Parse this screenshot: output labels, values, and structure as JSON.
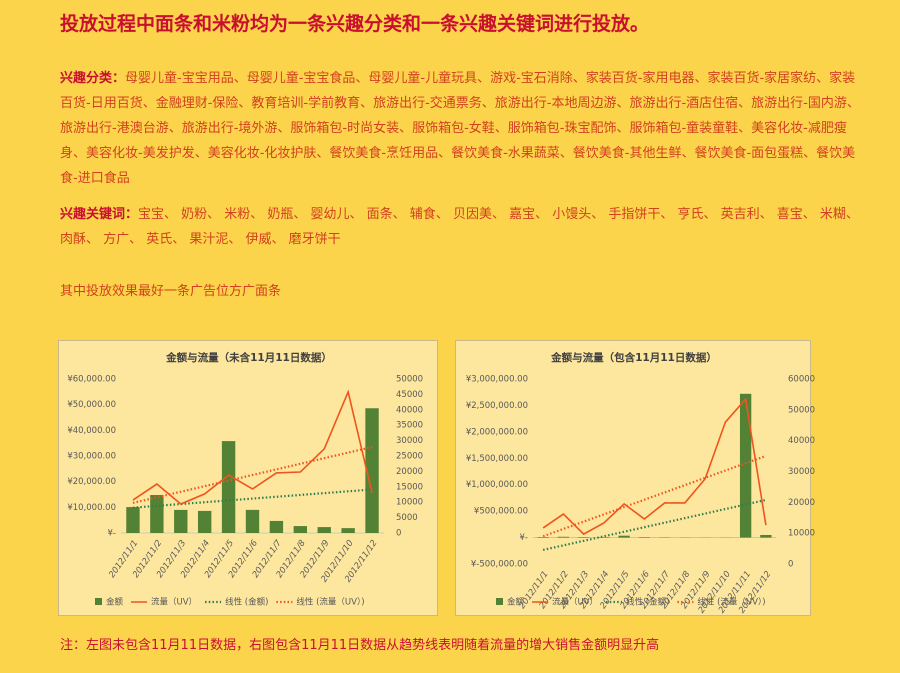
{
  "header": {
    "title": "投放过程中面条和米粉均为一条兴趣分类和一条兴趣关键词进行投放。"
  },
  "interest": {
    "label": "兴趣分类：",
    "text": "母婴儿童-宝宝用品、母婴儿童-宝宝食品、母婴儿童-儿童玩具、游戏-宝石消除、家装百货-家用电器、家装百货-家居家纺、家装百货-日用百货、金融理财-保险、教育培训-学前教育、旅游出行-交通票务、旅游出行-本地周边游、旅游出行-酒店住宿、旅游出行-国内游、旅游出行-港澳台游、旅游出行-境外游、服饰箱包-时尚女装、服饰箱包-女鞋、服饰箱包-珠宝配饰、服饰箱包-童装童鞋、美容化妆-减肥瘦身、美容化妆-美发护发、美容化妆-化妆护肤、餐饮美食-烹饪用品、餐饮美食-水果蔬菜、餐饮美食-其他生鲜、餐饮美食-面包蛋糕、餐饮美食-进口食品"
  },
  "keywords": {
    "label": "兴趣关键词：",
    "text": "宝宝、 奶粉、 米粉、 奶瓶、 婴幼儿、 面条、 辅食、 贝因美、 嘉宝、 小馒头、 手指饼干、 亨氏、 英吉利、 喜宝、 米糊、 肉酥、 方广、 英氏、 果汁泥、 伊威、 磨牙饼干"
  },
  "best": "其中投放效果最好一条广告位方广面条",
  "note": "注：左图未包含11月11日数据，右图包含11月11日数据从趋势线表明随着流量的增大销售金额明显升高",
  "chart_data": [
    {
      "type": "combo",
      "title": "金额与流量（未含11月11日数据）",
      "categories": [
        "2012/11/1",
        "2012/11/2",
        "2012/11/3",
        "2012/11/4",
        "2012/11/5",
        "2012/11/6",
        "2012/11/7",
        "2012/11/8",
        "2012/11/9",
        "2012/11/10",
        "2012/11/12"
      ],
      "series": [
        {
          "name": "金额",
          "type": "bar",
          "color": "#548235",
          "values": [
            10100,
            14800,
            9000,
            8600,
            35800,
            9000,
            4700,
            2700,
            2300,
            1900,
            48600
          ],
          "trend": {
            "name": "线性 (金额)",
            "color": "#2e7d4f"
          }
        },
        {
          "name": "流量（UV）",
          "type": "line",
          "axis": "y2",
          "color": "#f0541e",
          "values": [
            10700,
            15900,
            9400,
            12700,
            18800,
            14300,
            19500,
            19800,
            27300,
            45800,
            13000
          ],
          "trend": {
            "name": "线性 (流量（UV）)",
            "color": "#f0541e"
          }
        }
      ],
      "ylim": [
        0,
        60000
      ],
      "yticks": [
        {
          "value": 0,
          "label": "¥-"
        },
        {
          "value": 10000,
          "label": "¥10,000.00"
        },
        {
          "value": 20000,
          "label": "¥20,000.00"
        },
        {
          "value": 30000,
          "label": "¥30,000.00"
        },
        {
          "value": 40000,
          "label": "¥40,000.00"
        },
        {
          "value": 50000,
          "label": "¥50,000.00"
        },
        {
          "value": 60000,
          "label": "¥60,000.00"
        }
      ],
      "y2lim": [
        0,
        50000
      ],
      "y2ticks": [
        0,
        5000,
        10000,
        15000,
        20000,
        25000,
        30000,
        35000,
        40000,
        45000,
        50000
      ]
    },
    {
      "type": "combo",
      "title": "金额与流量（包含11月11日数据）",
      "categories": [
        "2012/11/1",
        "2012/11/2",
        "2012/11/3",
        "2012/11/4",
        "2012/11/5",
        "2012/11/6",
        "2012/11/7",
        "2012/11/8",
        "2012/11/9",
        "2012/11/10",
        "2012/11/11",
        "2012/11/12"
      ],
      "series": [
        {
          "name": "金额",
          "type": "bar",
          "color": "#548235",
          "values": [
            10100,
            14800,
            9000,
            8600,
            35800,
            9000,
            4700,
            2700,
            2300,
            1900,
            2720000,
            48600
          ],
          "trend": {
            "name": "线性 (金额)",
            "color": "#2e7d4f"
          }
        },
        {
          "name": "流量（UV）",
          "type": "line",
          "axis": "y2",
          "color": "#f0541e",
          "values": [
            11700,
            16200,
            9700,
            13300,
            19500,
            14600,
            19800,
            19800,
            27600,
            46000,
            53500,
            12600
          ],
          "trend": {
            "name": "线性 (流量（UV）)",
            "color": "#f0541e"
          }
        }
      ],
      "ylim": [
        -500000,
        3000000
      ],
      "yticks": [
        {
          "value": -500000,
          "label": "¥-500,000.00"
        },
        {
          "value": 0,
          "label": "¥-"
        },
        {
          "value": 500000,
          "label": "¥500,000.00"
        },
        {
          "value": 1000000,
          "label": "¥1,000,000.00"
        },
        {
          "value": 1500000,
          "label": "¥1,500,000.00"
        },
        {
          "value": 2000000,
          "label": "¥2,000,000.00"
        },
        {
          "value": 2500000,
          "label": "¥2,500,000.00"
        },
        {
          "value": 3000000,
          "label": "¥3,000,000.00"
        }
      ],
      "y2lim": [
        0,
        60000
      ],
      "y2ticks": [
        0,
        10000,
        20000,
        30000,
        40000,
        50000,
        60000
      ]
    }
  ]
}
